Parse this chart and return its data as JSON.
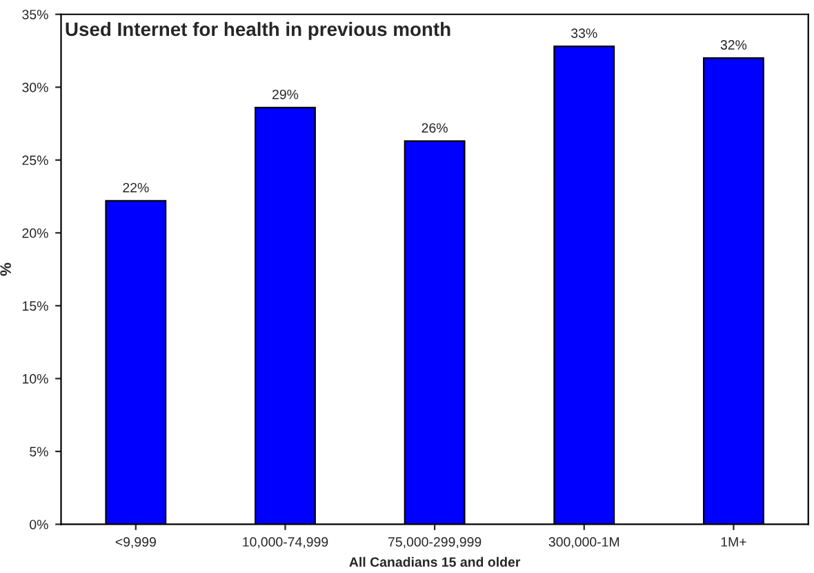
{
  "chart_data": {
    "type": "bar",
    "title": "Used Internet for health in previous month",
    "xlabel": "All Canadians 15 and older",
    "ylabel": "%",
    "categories": [
      "<9,999",
      "10,000-74,999",
      "75,000-299,999",
      "300,000-1M",
      "1M+"
    ],
    "values": [
      22.2,
      28.6,
      26.3,
      32.8,
      32.0
    ],
    "value_labels": [
      "22%",
      "29%",
      "26%",
      "33%",
      "32%"
    ],
    "color": "#0000ff",
    "ylim": [
      0,
      35
    ],
    "yticks": [
      {
        "value": 0,
        "label": "0%"
      },
      {
        "value": 5,
        "label": "5%"
      },
      {
        "value": 10,
        "label": "10%"
      },
      {
        "value": 15,
        "label": "15%"
      },
      {
        "value": 20,
        "label": "20%"
      },
      {
        "value": 25,
        "label": "25%"
      },
      {
        "value": 30,
        "label": "30%"
      },
      {
        "value": 35,
        "label": "35%"
      }
    ],
    "grid": false,
    "legend": false
  }
}
